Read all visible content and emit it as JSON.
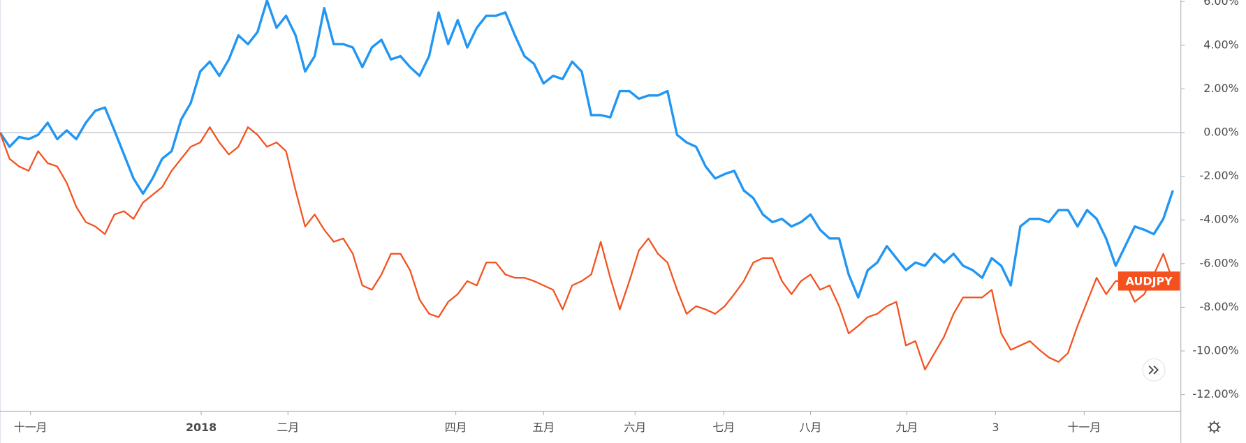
{
  "chart_data": {
    "type": "line",
    "x": [
      0,
      1,
      2,
      3,
      4,
      5,
      6,
      7,
      8,
      9,
      10,
      11,
      12,
      13,
      14,
      15,
      16,
      17,
      18,
      19,
      20,
      21,
      22,
      23,
      24,
      25,
      26,
      27,
      28,
      29,
      30,
      31,
      32,
      33,
      34,
      35,
      36,
      37,
      38,
      39,
      40,
      41,
      42,
      43,
      44,
      45,
      46,
      47,
      48,
      49,
      50,
      51,
      52,
      53,
      54,
      55,
      56,
      57,
      58,
      59,
      60,
      61,
      62,
      63,
      64,
      65,
      66,
      67,
      68,
      69,
      70,
      71,
      72,
      73,
      74,
      75,
      76,
      77,
      78,
      79,
      80,
      81,
      82,
      83,
      84,
      85,
      86,
      87,
      88,
      89,
      90,
      91,
      92,
      93,
      94,
      95,
      96,
      97,
      98,
      99,
      100,
      101,
      102,
      103,
      104,
      105,
      106,
      107,
      108,
      109,
      110,
      111,
      112,
      113,
      114,
      115,
      116,
      117,
      118,
      119,
      120,
      121,
      122,
      123
    ],
    "series": [
      {
        "color": "#2196f3",
        "values": [
          0,
          -0.65,
          -0.2,
          -0.3,
          -0.1,
          0.45,
          -0.3,
          0.1,
          -0.3,
          0.45,
          1.0,
          1.15,
          0.1,
          -1.0,
          -2.1,
          -2.8,
          -2.1,
          -1.2,
          -0.85,
          0.6,
          1.35,
          2.8,
          3.25,
          2.6,
          3.35,
          4.45,
          4.05,
          4.6,
          6.05,
          4.8,
          5.35,
          4.45,
          2.8,
          3.5,
          5.7,
          4.05,
          4.05,
          3.9,
          3.0,
          3.9,
          4.25,
          3.35,
          3.5,
          3.0,
          2.6,
          3.5,
          5.5,
          4.05,
          5.15,
          3.9,
          4.8,
          5.35,
          5.35,
          5.5,
          4.45,
          3.5,
          3.15,
          2.25,
          2.6,
          2.45,
          3.25,
          2.8,
          0.8,
          0.8,
          0.7,
          1.9,
          1.9,
          1.55,
          1.7,
          1.7,
          1.9,
          -0.1,
          -0.45,
          -0.65,
          -1.55,
          -2.1,
          -1.9,
          -1.75,
          -2.65,
          -3.0,
          -3.75,
          -4.1,
          -3.95,
          -4.3,
          -4.1,
          -3.75,
          -4.45,
          -4.85,
          -4.85,
          -6.5,
          -7.55,
          -6.3,
          -5.95,
          -5.2,
          -5.75,
          -6.3,
          -5.95,
          -6.1,
          -5.55,
          -5.95,
          -5.55,
          -6.1,
          -6.3,
          -6.65,
          -5.75,
          -6.1,
          -7.0,
          -4.3,
          -3.95,
          -3.95,
          -4.1,
          -3.55,
          -3.55,
          -4.3,
          -3.55,
          -3.95,
          -4.85,
          -6.1,
          -5.2,
          -4.3,
          -4.45,
          -4.65,
          -3.95,
          -2.65
        ]
      },
      {
        "name": "AUDJPY",
        "color": "#f4511e",
        "values": [
          0,
          -1.2,
          -1.55,
          -1.75,
          -0.85,
          -1.4,
          -1.55,
          -2.3,
          -3.4,
          -4.1,
          -4.3,
          -4.65,
          -3.75,
          -3.6,
          -3.95,
          -3.2,
          -2.85,
          -2.5,
          -1.75,
          -1.2,
          -0.65,
          -0.45,
          0.25,
          -0.45,
          -1.0,
          -0.65,
          0.25,
          -0.1,
          -0.65,
          -0.45,
          -0.85,
          -2.65,
          -4.3,
          -3.75,
          -4.45,
          -5.0,
          -4.85,
          -5.55,
          -7.0,
          -7.2,
          -6.5,
          -5.55,
          -5.55,
          -6.3,
          -7.65,
          -8.3,
          -8.45,
          -7.75,
          -7.4,
          -6.8,
          -7.0,
          -5.95,
          -5.95,
          -6.5,
          -6.65,
          -6.65,
          -6.8,
          -7.0,
          -7.2,
          -8.1,
          -7.0,
          -6.8,
          -6.5,
          -5.0,
          -6.65,
          -8.1,
          -6.8,
          -5.4,
          -4.85,
          -5.55,
          -5.95,
          -7.2,
          -8.3,
          -7.95,
          -8.1,
          -8.3,
          -7.95,
          -7.4,
          -6.8,
          -5.95,
          -5.75,
          -5.75,
          -6.8,
          -7.4,
          -6.8,
          -6.5,
          -7.2,
          -7.0,
          -7.95,
          -9.2,
          -8.85,
          -8.45,
          -8.3,
          -7.95,
          -7.75,
          -9.75,
          -9.55,
          -10.85,
          -10.1,
          -9.35,
          -8.3,
          -7.55,
          -7.55,
          -7.55,
          -7.2,
          -9.2,
          -9.95,
          -9.75,
          -9.55,
          -9.95,
          -10.3,
          -10.5,
          -10.1,
          -8.85,
          -7.75,
          -6.65,
          -7.4,
          -6.8,
          -6.8,
          -7.75,
          -7.4,
          -6.5,
          -5.55,
          -6.8
        ]
      }
    ],
    "xlim": [
      0,
      123.75
    ],
    "xticks": [
      {
        "value": 3.2,
        "label": "十一月"
      },
      {
        "value": 21.1,
        "label": "2018"
      },
      {
        "value": 30.2,
        "label": "二月"
      },
      {
        "value": 47.8,
        "label": "四月"
      },
      {
        "value": 57,
        "label": "五月"
      },
      {
        "value": 66.6,
        "label": "六月"
      },
      {
        "value": 75.9,
        "label": "七月"
      },
      {
        "value": 85,
        "label": "八月"
      },
      {
        "value": 95.1,
        "label": "九月"
      },
      {
        "value": 104.4,
        "label": "3"
      },
      {
        "value": 113.7,
        "label": "十一月"
      }
    ],
    "ylim": [
      -12.76,
      6.07
    ],
    "yticks": [
      {
        "value": 6,
        "label": "6.00%"
      },
      {
        "value": 4,
        "label": "4.00%"
      },
      {
        "value": 2,
        "label": "2.00%"
      },
      {
        "value": 0,
        "label": "0.00%"
      },
      {
        "value": -2,
        "label": "-2.00%"
      },
      {
        "value": -4,
        "label": "-4.00%"
      },
      {
        "value": -6,
        "label": "-6.00%"
      },
      {
        "value": -8,
        "label": "-8.00%"
      },
      {
        "value": -10,
        "label": "-10.00%"
      },
      {
        "value": -12,
        "label": "-12.00%"
      }
    ]
  }
}
